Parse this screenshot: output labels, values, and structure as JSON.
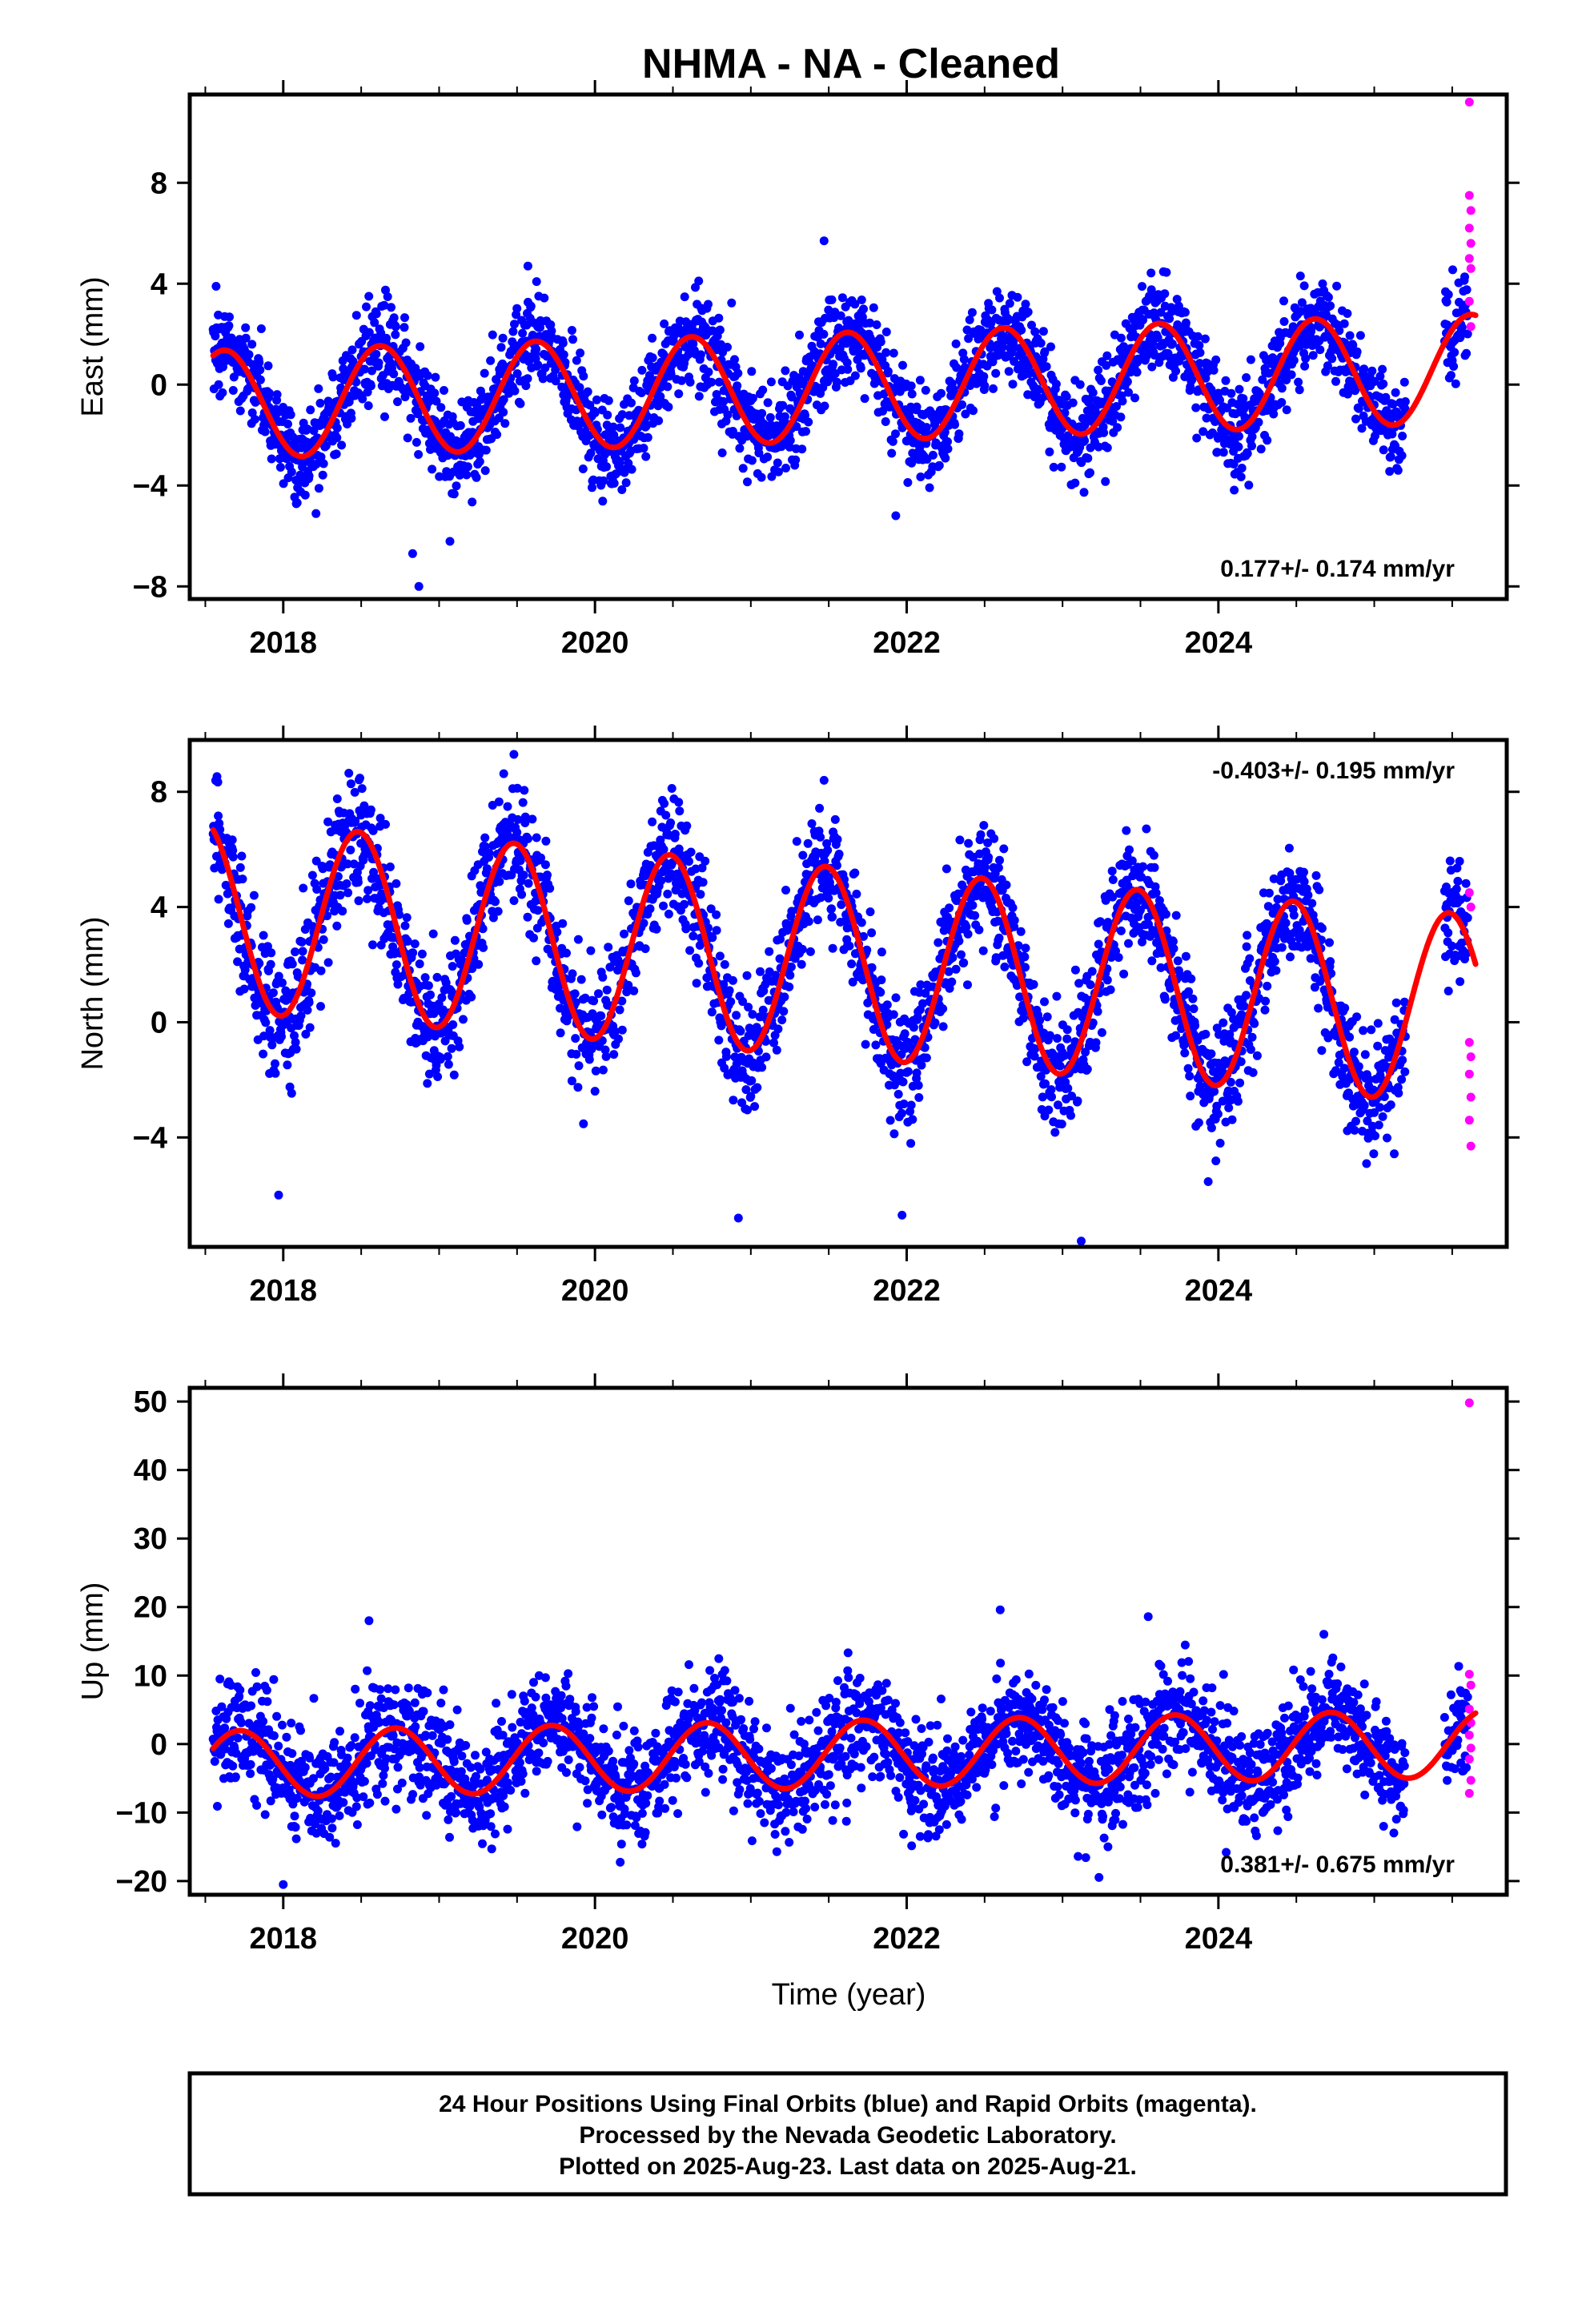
{
  "title": "NHMA  - NA - Cleaned",
  "xlabel": "Time (year)",
  "colors": {
    "final": "#0000ff",
    "rapid": "#ff00ff",
    "model": "#ff0000",
    "frame": "#000000"
  },
  "chart_data": [
    {
      "type": "scatter",
      "panel": "east",
      "ylabel": "East (mm)",
      "xlim": [
        2017.4,
        2025.85
      ],
      "ylim": [
        -8.5,
        11.5
      ],
      "xticks": [
        2018,
        2020,
        2022,
        2024
      ],
      "xtick_labels": [
        "2018",
        "2020",
        "2022",
        "2024"
      ],
      "yticks": [
        -8,
        -4,
        0,
        4,
        8
      ],
      "ytick_labels": [
        "−8",
        "−4",
        "0",
        "4",
        "8"
      ],
      "rate_label": "0.177+/- 0.174 mm/yr",
      "rate_position": "bottom-right",
      "model": {
        "offset": -0.1,
        "rate": 0.177,
        "amplitude": 2.15,
        "peak_phase": 0.62,
        "start": 2017.55,
        "end": 2025.65
      },
      "gap": [
        2025.2,
        2025.45
      ],
      "scatter_sd": 0.95,
      "final_range": [
        2017.55,
        2025.6
      ],
      "outliers": [
        [
          2018.87,
          -8.0
        ],
        [
          2018.83,
          -6.7
        ],
        [
          2021.47,
          5.7
        ],
        [
          2021.93,
          -5.2
        ],
        [
          2019.57,
          4.7
        ],
        [
          2023.08,
          -3.9
        ]
      ],
      "rapid": [
        [
          2025.61,
          11.2
        ],
        [
          2025.61,
          7.5
        ],
        [
          2025.62,
          6.9
        ],
        [
          2025.61,
          6.2
        ],
        [
          2025.62,
          5.6
        ],
        [
          2025.61,
          5.0
        ],
        [
          2025.62,
          4.6
        ],
        [
          2025.61,
          3.3
        ],
        [
          2025.62,
          2.3
        ]
      ]
    },
    {
      "type": "scatter",
      "panel": "north",
      "ylabel": "North (mm)",
      "xlim": [
        2017.4,
        2025.85
      ],
      "ylim": [
        -7.8,
        9.8
      ],
      "xticks": [
        2018,
        2020,
        2022,
        2024
      ],
      "xtick_labels": [
        "2018",
        "2020",
        "2022",
        "2024"
      ],
      "yticks": [
        -4,
        0,
        4,
        8
      ],
      "ytick_labels": [
        "−4",
        "0",
        "4",
        "8"
      ],
      "rate_label": "-0.403+/- 0.195 mm/yr",
      "rate_position": "top-right",
      "model": {
        "offset": 2.1,
        "rate": -0.403,
        "amplitude": 3.3,
        "peak_phase": 0.48,
        "start": 2017.55,
        "end": 2025.65
      },
      "gap": [
        2025.2,
        2025.45
      ],
      "scatter_sd": 1.05,
      "final_range": [
        2017.55,
        2025.6
      ],
      "outliers": [
        [
          2019.48,
          9.3
        ],
        [
          2021.47,
          8.4
        ],
        [
          2020.92,
          -6.8
        ],
        [
          2021.97,
          -6.7
        ],
        [
          2023.12,
          -7.6
        ],
        [
          2017.97,
          -6.0
        ]
      ],
      "rapid": [
        [
          2025.61,
          4.5
        ],
        [
          2025.62,
          4.0
        ],
        [
          2025.61,
          -0.7
        ],
        [
          2025.62,
          -1.2
        ],
        [
          2025.61,
          -1.8
        ],
        [
          2025.62,
          -2.6
        ],
        [
          2025.61,
          -3.4
        ],
        [
          2025.62,
          -4.3
        ]
      ]
    },
    {
      "type": "scatter",
      "panel": "up",
      "ylabel": "Up (mm)",
      "xlim": [
        2017.4,
        2025.85
      ],
      "ylim": [
        -22,
        52
      ],
      "xticks": [
        2018,
        2020,
        2022,
        2024
      ],
      "xtick_labels": [
        "2018",
        "2020",
        "2022",
        "2024"
      ],
      "yticks": [
        -20,
        -10,
        0,
        10,
        20,
        30,
        40,
        50
      ],
      "ytick_labels": [
        "−20",
        "−10",
        "0",
        "10",
        "20",
        "30",
        "40",
        "50"
      ],
      "rate_label": "0.381+/- 0.675 mm/yr",
      "rate_position": "bottom-right",
      "model": {
        "offset": -1.5,
        "rate": 0.381,
        "amplitude": 4.9,
        "peak_phase": 0.72,
        "start": 2017.55,
        "end": 2025.65
      },
      "gap": [
        2025.2,
        2025.45
      ],
      "scatter_sd": 3.9,
      "final_range": [
        2017.55,
        2025.6
      ],
      "outliers": [
        [
          2018.0,
          -20.5
        ],
        [
          2018.55,
          18.0
        ],
        [
          2022.6,
          19.6
        ],
        [
          2023.55,
          18.6
        ],
        [
          2024.05,
          -15.8
        ],
        [
          2023.1,
          -16.4
        ]
      ],
      "rapid": [
        [
          2025.61,
          49.8
        ],
        [
          2025.61,
          10.2
        ],
        [
          2025.62,
          8.6
        ],
        [
          2025.61,
          5.1
        ],
        [
          2025.62,
          3.1
        ],
        [
          2025.61,
          1.3
        ],
        [
          2025.62,
          -0.6
        ],
        [
          2025.61,
          -2.2
        ],
        [
          2025.62,
          -5.3
        ],
        [
          2025.61,
          -7.2
        ]
      ]
    }
  ],
  "footer": {
    "line1": "24 Hour Positions Using Final Orbits (blue) and Rapid Orbits (magenta).",
    "line2": "Processed by the Nevada Geodetic Laboratory.",
    "line3": "Plotted on 2025-Aug-23. Last data on 2025-Aug-21."
  }
}
